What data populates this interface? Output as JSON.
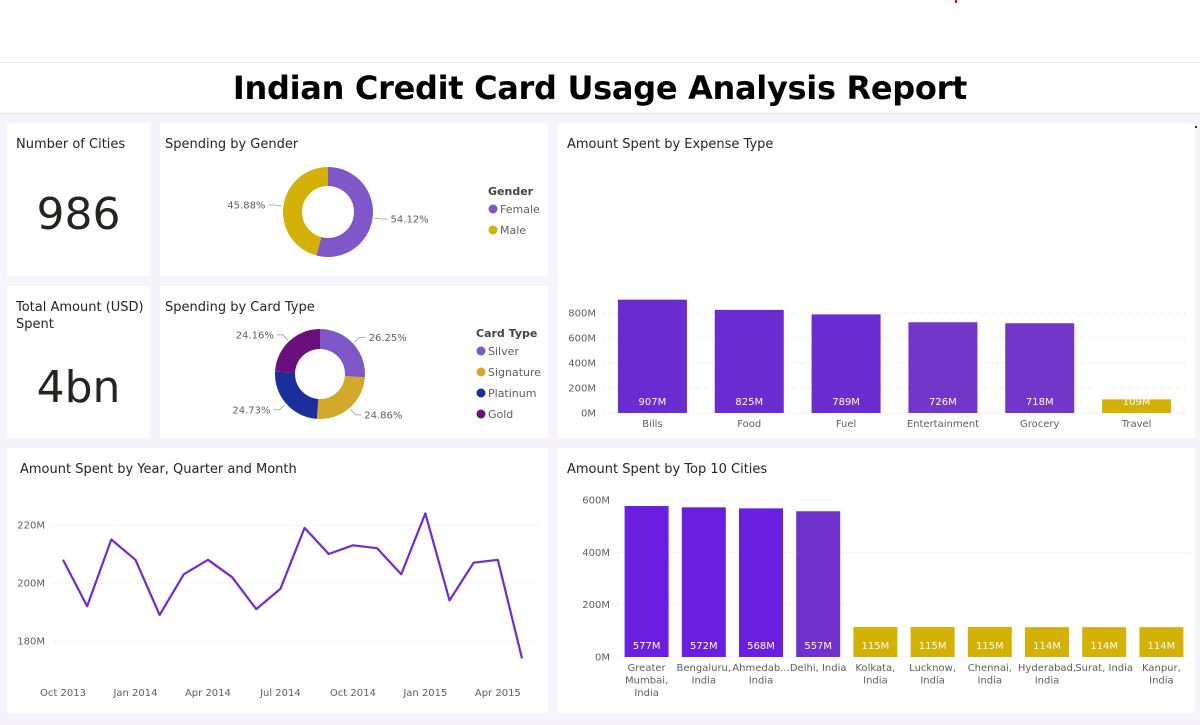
{
  "report_title": "Indian Credit Card Usage Analysis Report",
  "kpis": {
    "cities": {
      "label": "Number of Cities",
      "value": "986"
    },
    "total": {
      "label": "Total Amount (USD) Spent",
      "value": "4bn"
    }
  },
  "colors": {
    "purple_dark": "#6a1fd6",
    "purple_mid": "#7b3fce",
    "purple_light": "#7e57c8",
    "gold": "#d4b106",
    "navy": "#1a2e9c",
    "deep_purple": "#6b0f7d",
    "line": "#6f2bd2"
  },
  "chart_data": [
    {
      "id": "gender",
      "type": "pie",
      "title": "Spending by Gender",
      "legend_title": "Gender",
      "slices": [
        {
          "name": "Female",
          "value": 54.12,
          "label": "54.12%",
          "color": "#7e57c8"
        },
        {
          "name": "Male",
          "value": 45.88,
          "label": "45.88%",
          "color": "#d4b106"
        }
      ]
    },
    {
      "id": "cardtype",
      "type": "pie",
      "title": "Spending by Card Type",
      "legend_title": "Card Type",
      "slices": [
        {
          "name": "Silver",
          "value": 26.25,
          "label": "26.25%",
          "color": "#7e57c8"
        },
        {
          "name": "Signature",
          "value": 24.86,
          "label": "24.86%",
          "color": "#d4a82a"
        },
        {
          "name": "Platinum",
          "value": 24.73,
          "label": "24.73%",
          "color": "#1a2e9c"
        },
        {
          "name": "Gold",
          "value": 24.16,
          "label": "24.16%",
          "color": "#6b0f7d"
        }
      ]
    },
    {
      "id": "expense",
      "type": "bar",
      "title": "Amount Spent by Expense Type",
      "categories": [
        "Bills",
        "Food",
        "Fuel",
        "Entertainment",
        "Grocery",
        "Travel"
      ],
      "values": [
        907,
        825,
        789,
        726,
        718,
        109
      ],
      "value_labels": [
        "907M",
        "825M",
        "789M",
        "726M",
        "718M",
        "109M"
      ],
      "bar_colors": [
        "#6a2bd0",
        "#6a2bd0",
        "#6a2bd0",
        "#7236c8",
        "#7236c8",
        "#d4b106"
      ],
      "yticks": [
        0,
        200,
        400,
        600,
        800
      ],
      "ytick_labels": [
        "0M",
        "200M",
        "400M",
        "600M",
        "800M"
      ],
      "ylim": [
        0,
        1000
      ]
    },
    {
      "id": "monthly",
      "type": "line",
      "title": "Amount Spent by Year, Quarter and Month",
      "x": [
        "Oct 2013",
        "Nov 2013",
        "Dec 2013",
        "Jan 2014",
        "Feb 2014",
        "Mar 2014",
        "Apr 2014",
        "May 2014",
        "Jun 2014",
        "Jul 2014",
        "Aug 2014",
        "Sep 2014",
        "Oct 2014",
        "Nov 2014",
        "Dec 2014",
        "Jan 2015",
        "Feb 2015",
        "Mar 2015",
        "Apr 2015",
        "May 2015"
      ],
      "values": [
        208,
        192,
        215,
        208,
        189,
        203,
        208,
        202,
        191,
        198,
        219,
        210,
        213,
        212,
        203,
        224,
        194,
        207,
        208,
        174
      ],
      "xtick_labels": [
        "Oct 2013",
        "Jan 2014",
        "Apr 2014",
        "Jul 2014",
        "Oct 2014",
        "Jan 2015",
        "Apr 2015"
      ],
      "xtick_index": [
        0,
        3,
        6,
        9,
        12,
        15,
        18
      ],
      "yticks": [
        180,
        200,
        220
      ],
      "ytick_labels": [
        "180M",
        "200M",
        "220M"
      ],
      "ylim": [
        170,
        230
      ]
    },
    {
      "id": "cities",
      "type": "bar",
      "title": "Amount Spent by Top 10 Cities",
      "categories": [
        "Greater Mumbai, India",
        "Bengaluru, India",
        "Ahmedab... India",
        "Delhi, India",
        "Kolkata, India",
        "Lucknow, India",
        "Chennai, India",
        "Hyderabad, India",
        "Surat, India",
        "Kanpur, India"
      ],
      "category_lines": [
        [
          "Greater",
          "Mumbai,",
          "India"
        ],
        [
          "Bengaluru,",
          "India"
        ],
        [
          "Ahmedab...",
          "India"
        ],
        [
          "Delhi, India"
        ],
        [
          "Kolkata,",
          "India"
        ],
        [
          "Lucknow,",
          "India"
        ],
        [
          "Chennai,",
          "India"
        ],
        [
          "Hyderabad,",
          "India"
        ],
        [
          "Surat, India"
        ],
        [
          "Kanpur,",
          "India"
        ]
      ],
      "values": [
        577,
        572,
        568,
        557,
        115,
        115,
        115,
        114,
        114,
        114
      ],
      "value_labels": [
        "577M",
        "572M",
        "568M",
        "557M",
        "115M",
        "115M",
        "115M",
        "114M",
        "114M",
        "114M"
      ],
      "bar_colors": [
        "#6a1fe0",
        "#6a1fe0",
        "#6a1fe0",
        "#7030cc",
        "#d4b106",
        "#d4b106",
        "#d4b106",
        "#d4b106",
        "#d4b106",
        "#d4b106"
      ],
      "yticks": [
        0,
        200,
        400,
        600
      ],
      "ytick_labels": [
        "0M",
        "200M",
        "400M",
        "600M"
      ],
      "ylim": [
        0,
        600
      ]
    }
  ]
}
